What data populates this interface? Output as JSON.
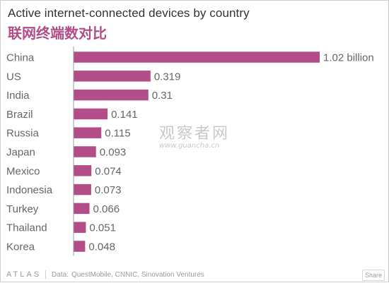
{
  "title": "Active internet-connected devices by country",
  "subtitle": "联网终端数对比",
  "chart_data": {
    "type": "bar",
    "orientation": "horizontal",
    "categories": [
      "China",
      "US",
      "India",
      "Brazil",
      "Russia",
      "Japan",
      "Mexico",
      "Indonesia",
      "Turkey",
      "Thailand",
      "Korea"
    ],
    "values": [
      1.02,
      0.319,
      0.31,
      0.141,
      0.115,
      0.093,
      0.074,
      0.073,
      0.066,
      0.051,
      0.048
    ],
    "value_labels": [
      "1.02 billion",
      "0.319",
      "0.31",
      "0.141",
      "0.115",
      "0.093",
      "0.074",
      "0.073",
      "0.066",
      "0.051",
      "0.048"
    ],
    "bar_color": "#b24d87",
    "axis_color": "#999999",
    "grid": false,
    "xlim": [
      0,
      1.02
    ]
  },
  "watermark": {
    "text": "观察者网",
    "url": "www.guancha.cn"
  },
  "footer": {
    "brand": "ATLAS",
    "source_label": "Data:",
    "source": "QuestMobile, CNNIC, Sinovation Ventures",
    "share_label": "Share"
  }
}
